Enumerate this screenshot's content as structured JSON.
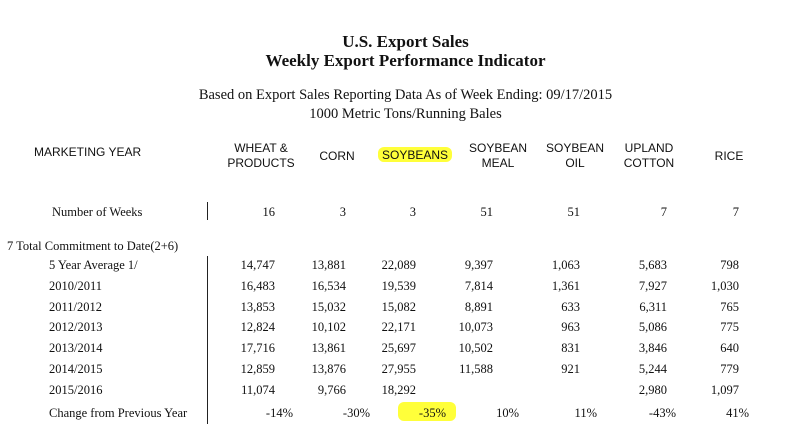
{
  "header": {
    "title1": "U.S. Export Sales",
    "title2": "Weekly Export Performance Indicator",
    "sub1": "Based on Export Sales Reporting Data As of Week Ending: 09/17/2015",
    "sub2": "1000 Metric Tons/Running Bales"
  },
  "columns": {
    "marketing_year": "MARKETING YEAR",
    "wheat_line1": "WHEAT &",
    "wheat_line2": "PRODUCTS",
    "corn": "CORN",
    "soybeans": "SOYBEANS",
    "soymeal_line1": "SOYBEAN",
    "soymeal_line2": "MEAL",
    "soyoil_line1": "SOYBEAN",
    "soyoil_line2": "OIL",
    "cotton_line1": "UPLAND",
    "cotton_line2": "COTTON",
    "rice": "RICE"
  },
  "weeks": {
    "label": "Number of Weeks",
    "values": [
      "16",
      "3",
      "3",
      "51",
      "51",
      "7",
      "7"
    ]
  },
  "section_label": "7 Total Commitment to Date(2+6)",
  "rows": [
    {
      "label": "5 Year Average 1/",
      "values": [
        "14,747",
        "13,881",
        "22,089",
        "9,397",
        "1,063",
        "5,683",
        "798"
      ]
    },
    {
      "label": "2010/2011",
      "values": [
        "16,483",
        "16,534",
        "19,539",
        "7,814",
        "1,361",
        "7,927",
        "1,030"
      ]
    },
    {
      "label": "2011/2012",
      "values": [
        "13,853",
        "15,032",
        "15,082",
        "8,891",
        "633",
        "6,311",
        "765"
      ]
    },
    {
      "label": "2012/2013",
      "values": [
        "12,824",
        "10,102",
        "22,171",
        "10,073",
        "963",
        "5,086",
        "775"
      ]
    },
    {
      "label": "2013/2014",
      "values": [
        "17,716",
        "13,861",
        "25,697",
        "10,502",
        "831",
        "3,846",
        "640"
      ]
    },
    {
      "label": "2014/2015",
      "values": [
        "12,859",
        "13,876",
        "27,955",
        "11,588",
        "921",
        "5,244",
        "779"
      ]
    },
    {
      "label": "2015/2016",
      "values": [
        "11,074",
        "9,766",
        "18,292",
        "",
        "",
        "2,980",
        "1,097"
      ]
    }
  ],
  "change": {
    "label": "Change from Previous Year",
    "values": [
      "-14%",
      "-30%",
      "-35%",
      "10%",
      "11%",
      "-43%",
      "41%"
    ]
  },
  "highlight_color": "#ffff33"
}
